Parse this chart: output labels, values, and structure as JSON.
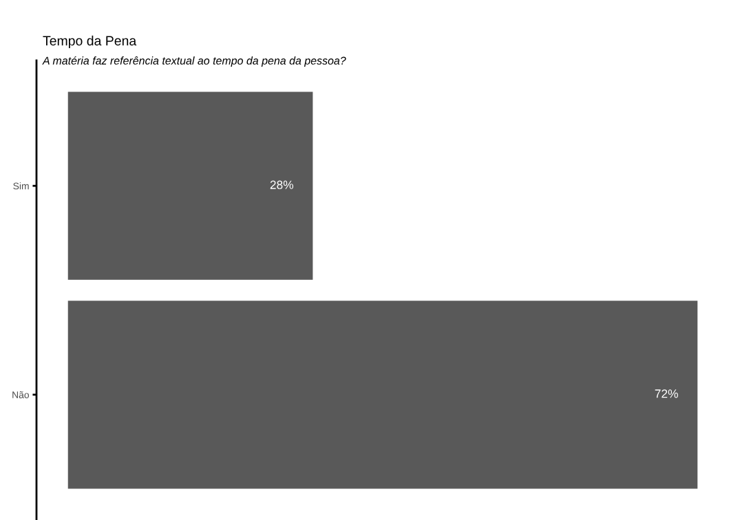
{
  "chart_data": {
    "type": "bar",
    "orientation": "horizontal",
    "title": "Tempo da Pena",
    "subtitle": "A matéria faz referência textual ao tempo da pena da pessoa?",
    "categories": [
      "Sim",
      "Não"
    ],
    "values": [
      28,
      72
    ],
    "value_labels": [
      "28%",
      "72%"
    ],
    "color": "#595959",
    "grid": false,
    "tick_labels": "y"
  }
}
